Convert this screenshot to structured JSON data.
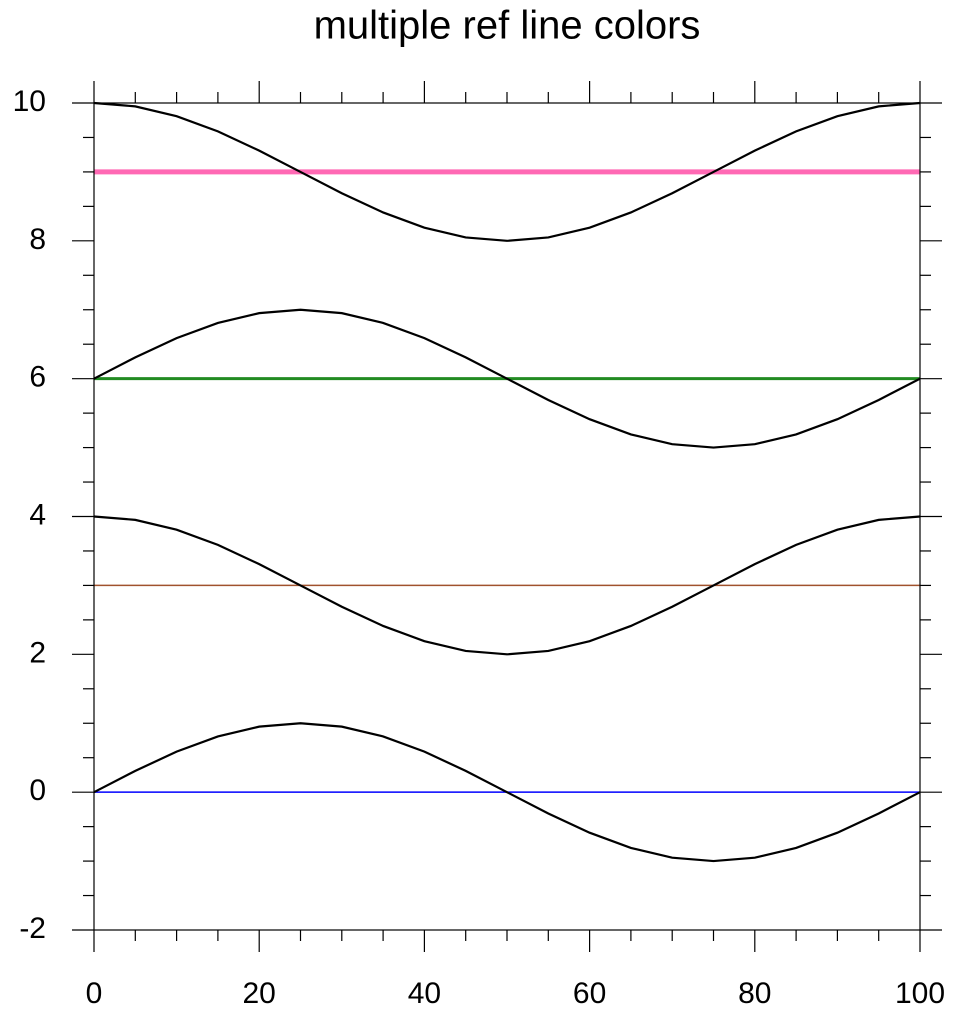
{
  "chart_data": {
    "type": "line",
    "title": "multiple ref line colors",
    "x": [
      0,
      5,
      10,
      15,
      20,
      25,
      30,
      35,
      40,
      45,
      50,
      55,
      60,
      65,
      70,
      75,
      80,
      85,
      90,
      95,
      100
    ],
    "series": [
      {
        "color": "#000000",
        "values": [
          0,
          0.309,
          0.588,
          0.809,
          0.951,
          1,
          0.951,
          0.809,
          0.588,
          0.309,
          0,
          -0.309,
          -0.588,
          -0.809,
          -0.951,
          -1,
          -0.951,
          -0.809,
          -0.588,
          -0.309,
          0
        ]
      },
      {
        "color": "#000000",
        "values": [
          4,
          3.951,
          3.809,
          3.588,
          3.309,
          3,
          2.691,
          2.412,
          2.191,
          2.049,
          2,
          2.049,
          2.191,
          2.412,
          2.691,
          3,
          3.309,
          3.588,
          3.809,
          3.951,
          4
        ]
      },
      {
        "color": "#000000",
        "values": [
          6,
          6.309,
          6.588,
          6.809,
          6.951,
          7,
          6.951,
          6.809,
          6.588,
          6.309,
          6,
          5.691,
          5.412,
          5.191,
          5.049,
          5,
          5.049,
          5.191,
          5.412,
          5.691,
          6
        ]
      },
      {
        "color": "#000000",
        "values": [
          10,
          9.951,
          9.809,
          9.588,
          9.309,
          9,
          8.691,
          8.412,
          8.191,
          8.049,
          8,
          8.049,
          8.191,
          8.412,
          8.691,
          9,
          9.309,
          9.588,
          9.809,
          9.951,
          10
        ]
      }
    ],
    "ref_lines": [
      {
        "value": 0,
        "color": "#0000ff"
      },
      {
        "value": 3,
        "color": "#a0522d"
      },
      {
        "value": 6,
        "color": "#228b22"
      },
      {
        "value": 9,
        "color": "#ff69b4"
      }
    ],
    "xlim": [
      0,
      100
    ],
    "xticks": [
      0,
      20,
      40,
      60,
      80,
      100
    ],
    "xminorticks": [
      5,
      10,
      15,
      25,
      30,
      35,
      45,
      50,
      55,
      65,
      70,
      75,
      85,
      90,
      95
    ],
    "ylim": [
      -2,
      10
    ],
    "yticks": [
      -2,
      0,
      2,
      4,
      6,
      8,
      10
    ],
    "yminorticks": [
      -1.5,
      -1,
      -0.5,
      0.5,
      1,
      1.5,
      2.5,
      3,
      3.5,
      4.5,
      5,
      5.5,
      6.5,
      7,
      7.5,
      8.5,
      9,
      9.5
    ],
    "grid": false
  }
}
